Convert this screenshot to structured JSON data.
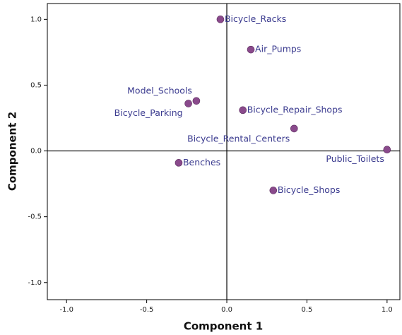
{
  "chart_data": {
    "type": "scatter",
    "x_label": "Component 1",
    "y_label": "Component 2",
    "color": "#8a4a8c",
    "label_color": "#3b3b8f",
    "xlim": [
      -1.12,
      1.08
    ],
    "ylim": [
      -1.13,
      1.12
    ],
    "xticks": [
      {
        "value": -1,
        "label": "-1.0"
      },
      {
        "value": -0.5,
        "label": "-0.5"
      },
      {
        "value": 0,
        "label": "0.0"
      },
      {
        "value": 0.5,
        "label": "0.5"
      },
      {
        "value": 1,
        "label": "1.0"
      }
    ],
    "yticks": [
      {
        "value": -1,
        "label": "-1.0"
      },
      {
        "value": -0.5,
        "label": "-0.5"
      },
      {
        "value": 0,
        "label": "0.0"
      },
      {
        "value": 0.5,
        "label": "0.5"
      },
      {
        "value": 1,
        "label": "1.0"
      }
    ],
    "reference_lines": {
      "x": 0,
      "y": 0
    },
    "labels": [
      "Bicycle_Racks",
      "Air_Pumps",
      "Model_Schools",
      "Bicycle_Parking",
      "Bicycle_Repair_Shops",
      "Bicycle_Rental_Centers",
      "Public_Toilets",
      "Benches",
      "Bicycle_Shops"
    ],
    "x": [
      -0.04,
      0.15,
      -0.19,
      -0.24,
      0.1,
      0.42,
      1.0,
      -0.3,
      0.29
    ],
    "y": [
      1.0,
      0.77,
      0.38,
      0.36,
      0.31,
      0.17,
      0.01,
      -0.09,
      -0.3
    ]
  }
}
